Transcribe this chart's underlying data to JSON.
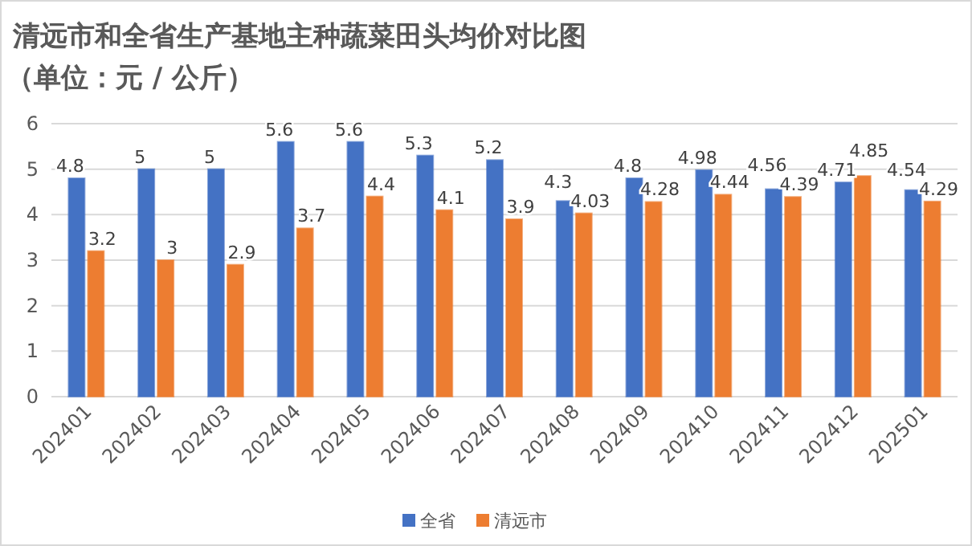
{
  "chart_data": {
    "type": "bar",
    "title": "清远市和全省生产基地主种蔬菜田头均价对比图",
    "subtitle": "（单位：元 / 公斤）",
    "categories": [
      "202401",
      "202402",
      "202403",
      "202404",
      "202405",
      "202406",
      "202407",
      "202408",
      "202409",
      "202410",
      "202411",
      "202412",
      "202501"
    ],
    "series": [
      {
        "name": "全省",
        "color": "#4472c4",
        "values": [
          4.8,
          5,
          5,
          5.6,
          5.6,
          5.3,
          5.2,
          4.3,
          4.8,
          4.98,
          4.56,
          4.71,
          4.54
        ]
      },
      {
        "name": "清远市",
        "color": "#ed7d31",
        "values": [
          3.2,
          3,
          2.9,
          3.7,
          4.4,
          4.1,
          3.9,
          4.03,
          4.28,
          4.44,
          4.39,
          4.85,
          4.29
        ]
      }
    ],
    "ylim": [
      0,
      6
    ],
    "yticks": [
      0,
      1,
      2,
      3,
      4,
      5,
      6
    ],
    "grid": "y",
    "legend": "bottom",
    "data_labels": true
  }
}
